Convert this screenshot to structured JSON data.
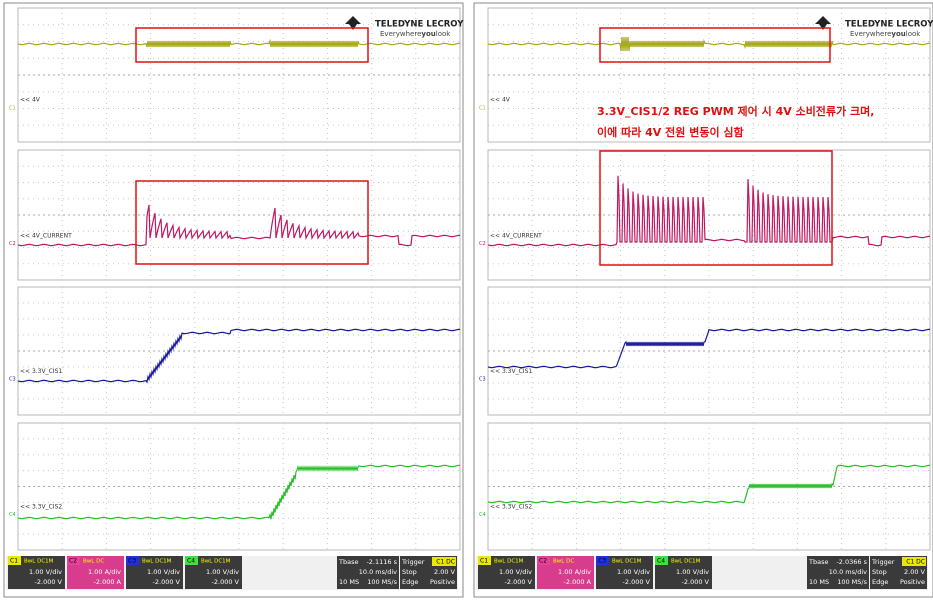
{
  "panels": [
    {
      "logo": {
        "brand": "TELEDYNE LECROY",
        "tagline_pre": "Everywhere",
        "tagline_bold": "you",
        "tagline_post": "look"
      },
      "traces": [
        {
          "label": "<< 4V",
          "channel": "C1"
        },
        {
          "label": "<< 4V_CURRENT",
          "channel": "C2"
        },
        {
          "label": "<< 3.3V_CIS1",
          "channel": "C3"
        },
        {
          "label": "<< 3.3V_CIS2",
          "channel": "C4"
        }
      ],
      "channels": [
        {
          "id": "C1",
          "badge": "BwL DC1M",
          "scale": "1.00 V/div",
          "offset": "-2.000 V"
        },
        {
          "id": "C2",
          "badge": "BwL DC",
          "scale": "1.00 A/div",
          "offset": "-2.000 A"
        },
        {
          "id": "C3",
          "badge": "BwL DC1M",
          "scale": "1.00 V/div",
          "offset": "-2.000 V"
        },
        {
          "id": "C4",
          "badge": "BwL DC1M",
          "scale": "1.00 V/div",
          "offset": "-2.000 V"
        }
      ],
      "timebase": {
        "label": "Tbase",
        "delay": "-2.1116 s",
        "scale": "10.0 ms/div",
        "samples": "10 MS",
        "rate": "100 MS/s"
      },
      "trigger": {
        "label": "Trigger",
        "source": "C1 DC",
        "mode": "Stop",
        "level": "2.00 V",
        "type": "Edge",
        "slope": "Positive"
      }
    },
    {
      "logo": {
        "brand": "TELEDYNE LECROY",
        "tagline_pre": "Everywhere",
        "tagline_bold": "you",
        "tagline_post": "look"
      },
      "traces": [
        {
          "label": "<< 4V",
          "channel": "C1"
        },
        {
          "label": "<< 4V_CURRENT",
          "channel": "C2"
        },
        {
          "label": "<< 3.3V_CIS1",
          "channel": "C3"
        },
        {
          "label": "<< 3.3V_CIS2",
          "channel": "C4"
        }
      ],
      "channels": [
        {
          "id": "C1",
          "badge": "BwL DC1M",
          "scale": "1.00 V/div",
          "offset": "-2.000 V"
        },
        {
          "id": "C2",
          "badge": "BwL DC",
          "scale": "1.00 A/div",
          "offset": "-2.000 A"
        },
        {
          "id": "C3",
          "badge": "BwL DC1M",
          "scale": "1.00 V/div",
          "offset": "-2.000 V"
        },
        {
          "id": "C4",
          "badge": "BwL DC1M",
          "scale": "1.00 V/div",
          "offset": "-2.000 V"
        }
      ],
      "timebase": {
        "label": "Tbase",
        "delay": "-2.0366 s",
        "scale": "10.0 ms/div",
        "samples": "10 MS",
        "rate": "100 MS/s"
      },
      "trigger": {
        "label": "Trigger",
        "source": "C1 DC",
        "mode": "Stop",
        "level": "2.00 V",
        "type": "Edge",
        "slope": "Positive"
      },
      "annotation": [
        "3.3V_CIS1/2 REG PWM 제어 시 4V 소비전류가 크며,",
        "이에 따라 4V 전원 변동이 심함"
      ]
    }
  ]
}
